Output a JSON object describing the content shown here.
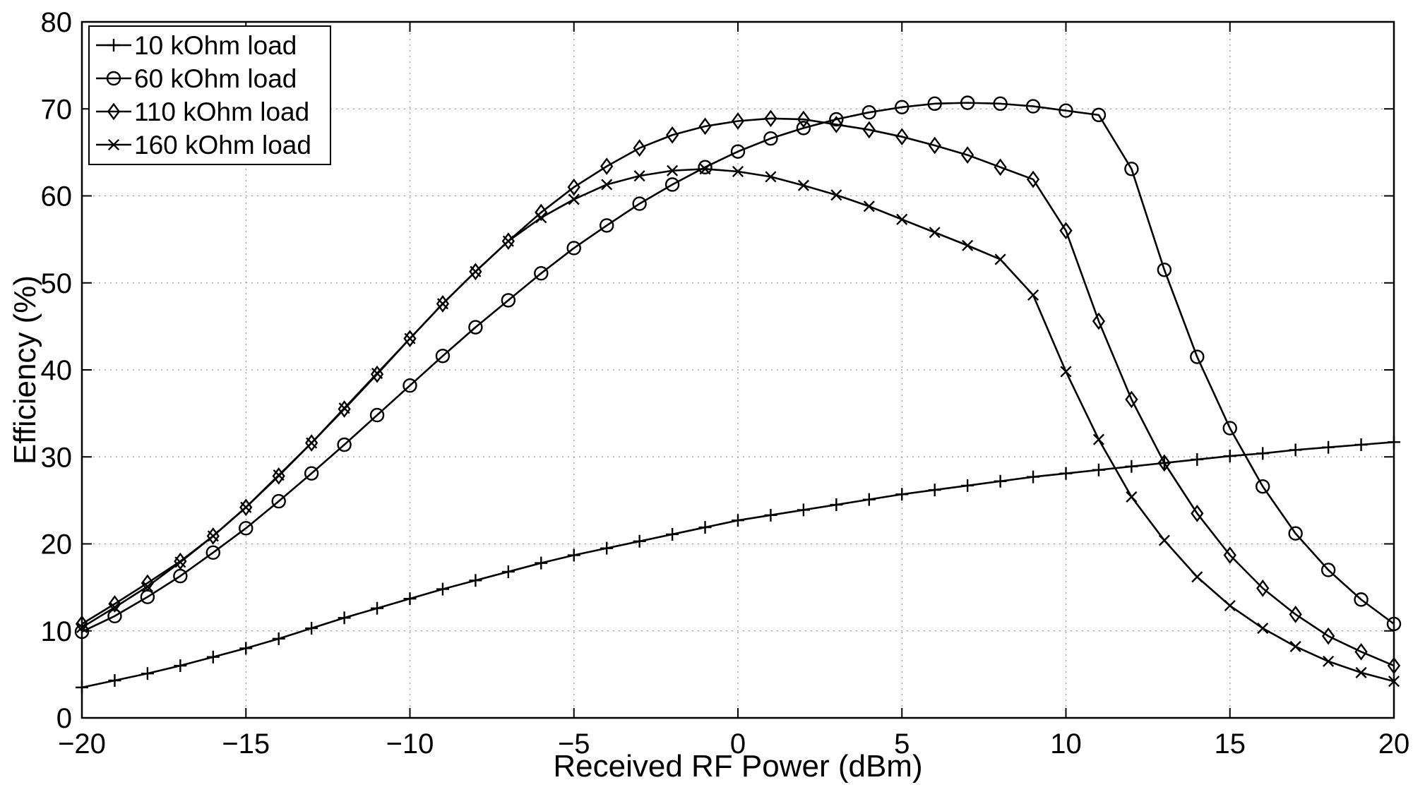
{
  "chart_data": {
    "type": "line",
    "title": "",
    "xlabel": "Received RF Power (dBm)",
    "ylabel": "Efficiency (%)",
    "xlim": [
      -20,
      20
    ],
    "ylim": [
      0,
      80
    ],
    "xticks": [
      -20,
      -15,
      -10,
      -5,
      0,
      5,
      10,
      15,
      20
    ],
    "xtick_labels": [
      "−20",
      "−15",
      "−10",
      "−5",
      "0",
      "5",
      "10",
      "15",
      "20"
    ],
    "yticks": [
      0,
      10,
      20,
      30,
      40,
      50,
      60,
      70,
      80
    ],
    "ytick_labels": [
      "0",
      "10",
      "20",
      "30",
      "40",
      "50",
      "60",
      "70",
      "80"
    ],
    "grid": true,
    "legend_position": "top-left",
    "x": [
      -20,
      -19,
      -18,
      -17,
      -16,
      -15,
      -14,
      -13,
      -12,
      -11,
      -10,
      -9,
      -8,
      -7,
      -6,
      -5,
      -4,
      -3,
      -2,
      -1,
      0,
      1,
      2,
      3,
      4,
      5,
      6,
      7,
      8,
      9,
      10,
      11,
      12,
      13,
      14,
      15,
      16,
      17,
      18,
      19,
      20
    ],
    "series": [
      {
        "name": "10 kOhm load",
        "marker": "plus",
        "color": "#000000",
        "values": [
          3.5,
          4.3,
          5.1,
          6.0,
          7.0,
          8.0,
          9.1,
          10.3,
          11.5,
          12.6,
          13.7,
          14.8,
          15.8,
          16.8,
          17.8,
          18.7,
          19.5,
          20.3,
          21.1,
          21.9,
          22.7,
          23.3,
          23.9,
          24.5,
          25.1,
          25.7,
          26.2,
          26.7,
          27.2,
          27.7,
          28.1,
          28.5,
          28.9,
          29.3,
          29.7,
          30.1,
          30.4,
          30.8,
          31.1,
          31.4,
          31.7
        ]
      },
      {
        "name": "60 kOhm load",
        "marker": "circle",
        "color": "#000000",
        "values": [
          9.9,
          11.7,
          13.9,
          16.3,
          19.0,
          21.8,
          24.9,
          28.1,
          31.4,
          34.8,
          38.2,
          41.6,
          44.9,
          48.0,
          51.1,
          54.0,
          56.6,
          59.1,
          61.3,
          63.3,
          65.1,
          66.6,
          67.8,
          68.8,
          69.6,
          70.2,
          70.6,
          70.7,
          70.6,
          70.3,
          69.8,
          69.3,
          63.1,
          51.5,
          41.5,
          33.3,
          26.6,
          21.2,
          17.0,
          13.6,
          10.8
        ]
      },
      {
        "name": "110 kOhm load",
        "marker": "diamond",
        "color": "#000000",
        "values": [
          10.8,
          13.1,
          15.5,
          18.0,
          20.9,
          24.2,
          27.8,
          31.6,
          35.5,
          39.5,
          43.6,
          47.6,
          51.3,
          54.8,
          58.1,
          61.0,
          63.4,
          65.5,
          67.0,
          68.0,
          68.6,
          68.9,
          68.8,
          68.2,
          67.6,
          66.8,
          65.8,
          64.7,
          63.3,
          61.9,
          56.0,
          45.6,
          36.6,
          29.3,
          23.5,
          18.7,
          14.9,
          11.9,
          9.4,
          7.6,
          6.0
        ]
      },
      {
        "name": "160 kOhm load",
        "marker": "x",
        "color": "#000000",
        "values": [
          10.4,
          12.7,
          15.1,
          17.9,
          20.9,
          24.2,
          27.9,
          31.6,
          35.6,
          39.6,
          43.6,
          47.6,
          51.3,
          54.8,
          57.5,
          59.6,
          61.3,
          62.3,
          62.9,
          63.1,
          62.8,
          62.2,
          61.2,
          60.1,
          58.8,
          57.3,
          55.8,
          54.3,
          52.7,
          48.6,
          39.8,
          32.0,
          25.4,
          20.4,
          16.2,
          12.9,
          10.3,
          8.2,
          6.5,
          5.2,
          4.2
        ]
      }
    ]
  }
}
